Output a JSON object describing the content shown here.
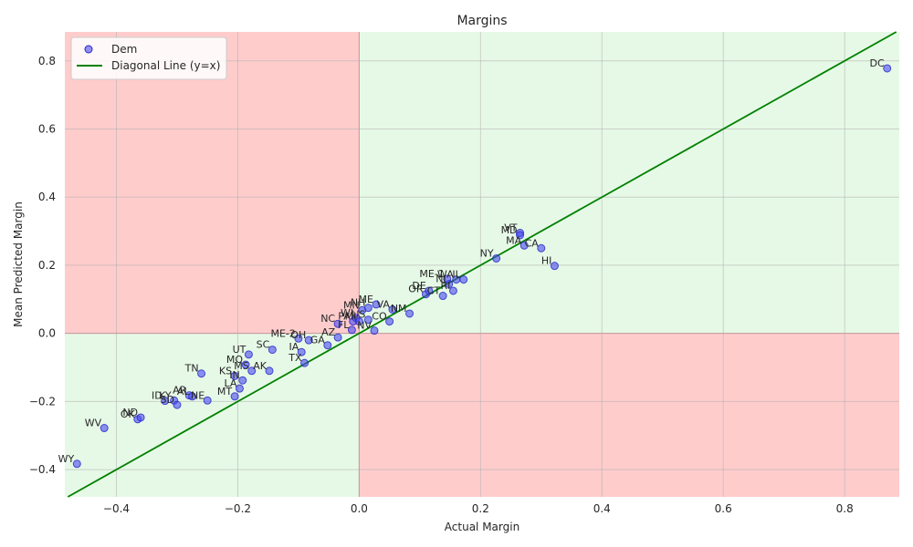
{
  "chart_data": {
    "type": "scatter",
    "title": "Margins",
    "xlabel": "Actual Margin",
    "ylabel": "Mean Predicted Margin",
    "xlim": [
      -0.485,
      0.89
    ],
    "ylim": [
      -0.48,
      0.885
    ],
    "xticks": [
      -0.4,
      -0.2,
      0.0,
      0.2,
      0.4,
      0.6,
      0.8
    ],
    "yticks": [
      -0.4,
      -0.2,
      0.0,
      0.2,
      0.4,
      0.6,
      0.8
    ],
    "tick_labels_x": [
      "−0.4",
      "−0.2",
      "0.0",
      "0.2",
      "0.4",
      "0.6",
      "0.8"
    ],
    "tick_labels_y": [
      "−0.4",
      "−0.2",
      "0.0",
      "0.2",
      "0.4",
      "0.6",
      "0.8"
    ],
    "grid": true,
    "legend_position": "top-left",
    "quadrants": {
      "correct_color": "#e6f9e6",
      "wrong_color": "#ffcccc"
    },
    "series": [
      {
        "name": "Dem",
        "color": "#4a4af0",
        "points": [
          {
            "label": "WY",
            "x": -0.465,
            "y": -0.383
          },
          {
            "label": "WV",
            "x": -0.42,
            "y": -0.278
          },
          {
            "label": "OK",
            "x": -0.365,
            "y": -0.252
          },
          {
            "label": "ND",
            "x": -0.36,
            "y": -0.247
          },
          {
            "label": "ID",
            "x": -0.32,
            "y": -0.198
          },
          {
            "label": "KY",
            "x": -0.305,
            "y": -0.197
          },
          {
            "label": "SD",
            "x": -0.3,
            "y": -0.21
          },
          {
            "label": "AR",
            "x": -0.28,
            "y": -0.182
          },
          {
            "label": "NE",
            "x": -0.25,
            "y": -0.197
          },
          {
            "label": "AL",
            "x": -0.275,
            "y": -0.185
          },
          {
            "label": "TN",
            "x": -0.26,
            "y": -0.118
          },
          {
            "label": "MT",
            "x": -0.205,
            "y": -0.185
          },
          {
            "label": "LA",
            "x": -0.197,
            "y": -0.162
          },
          {
            "label": "IN",
            "x": -0.192,
            "y": -0.138
          },
          {
            "label": "KS",
            "x": -0.205,
            "y": -0.125
          },
          {
            "label": "MS",
            "x": -0.177,
            "y": -0.11
          },
          {
            "label": "MO",
            "x": -0.187,
            "y": -0.092
          },
          {
            "label": "UT",
            "x": -0.182,
            "y": -0.062
          },
          {
            "label": "AK",
            "x": -0.148,
            "y": -0.11
          },
          {
            "label": "SC",
            "x": -0.143,
            "y": -0.048
          },
          {
            "label": "ME-2",
            "x": -0.1,
            "y": -0.015
          },
          {
            "label": "OH",
            "x": -0.083,
            "y": -0.02
          },
          {
            "label": "IA",
            "x": -0.095,
            "y": -0.055
          },
          {
            "label": "TX",
            "x": -0.09,
            "y": -0.087
          },
          {
            "label": "GA",
            "x": -0.052,
            "y": -0.035
          },
          {
            "label": "AZ",
            "x": -0.035,
            "y": -0.012
          },
          {
            "label": "NC",
            "x": -0.035,
            "y": 0.028
          },
          {
            "label": "FL",
            "x": -0.012,
            "y": 0.01
          },
          {
            "label": "PA",
            "x": -0.01,
            "y": 0.035
          },
          {
            "label": "WI",
            "x": -0.005,
            "y": 0.045
          },
          {
            "label": "MI",
            "x": 0.0,
            "y": 0.035
          },
          {
            "label": "NV",
            "x": 0.025,
            "y": 0.008
          },
          {
            "label": "US",
            "x": 0.015,
            "y": 0.04
          },
          {
            "label": "MN",
            "x": 0.005,
            "y": 0.068
          },
          {
            "label": "ME",
            "x": 0.028,
            "y": 0.085
          },
          {
            "label": "NH",
            "x": 0.015,
            "y": 0.075
          },
          {
            "label": "VA",
            "x": 0.055,
            "y": 0.07
          },
          {
            "label": "CO",
            "x": 0.05,
            "y": 0.035
          },
          {
            "label": "NM",
            "x": 0.083,
            "y": 0.058
          },
          {
            "label": "OR",
            "x": 0.11,
            "y": 0.115
          },
          {
            "label": "DE",
            "x": 0.115,
            "y": 0.125
          },
          {
            "label": "CT",
            "x": 0.138,
            "y": 0.11
          },
          {
            "label": "RI",
            "x": 0.155,
            "y": 0.125
          },
          {
            "label": "NJ",
            "x": 0.148,
            "y": 0.145
          },
          {
            "label": "ME-1",
            "x": 0.145,
            "y": 0.16
          },
          {
            "label": "WA",
            "x": 0.16,
            "y": 0.158
          },
          {
            "label": "IL",
            "x": 0.172,
            "y": 0.158
          },
          {
            "label": "NY",
            "x": 0.226,
            "y": 0.22
          },
          {
            "label": "VT",
            "x": 0.265,
            "y": 0.295
          },
          {
            "label": "MD",
            "x": 0.265,
            "y": 0.288
          },
          {
            "label": "MA",
            "x": 0.272,
            "y": 0.258
          },
          {
            "label": "CA",
            "x": 0.3,
            "y": 0.25
          },
          {
            "label": "HI",
            "x": 0.322,
            "y": 0.198
          },
          {
            "label": "DC",
            "x": 0.87,
            "y": 0.778
          }
        ]
      },
      {
        "name": "Diagonal Line (y=x)",
        "color": "#008000",
        "type": "line"
      }
    ]
  }
}
